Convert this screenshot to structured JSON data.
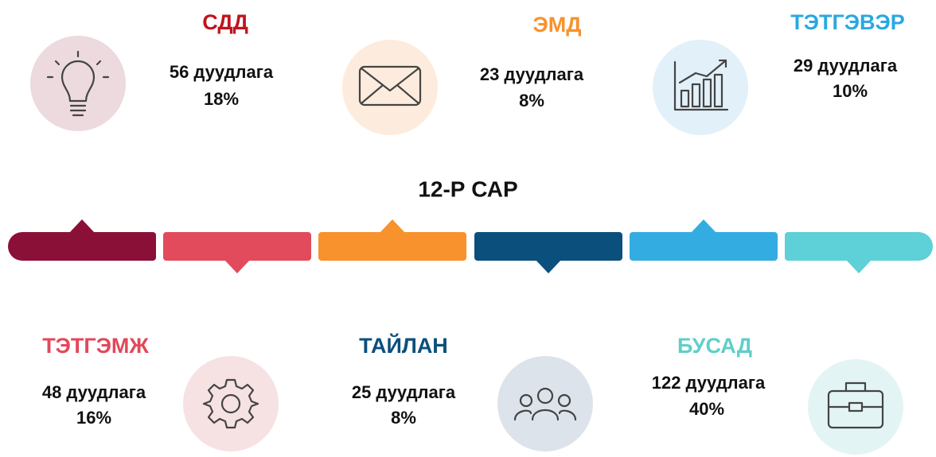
{
  "title": "12-Р САР",
  "items": [
    {
      "label": "СДД",
      "count": "56 дуудлага",
      "percent": "18%",
      "label_color": "#c0141d",
      "bar_color": "#8b1038",
      "circle_color": "#ecdade"
    },
    {
      "label": "ТЭТГЭМЖ",
      "count": "48 дуудлага",
      "percent": "16%",
      "label_color": "#e2485a",
      "bar_color": "#e24b5c",
      "circle_color": "#f6e1e3"
    },
    {
      "label": "ЭМД",
      "count": "23 дуудлага",
      "percent": "8%",
      "label_color": "#f7922d",
      "bar_color": "#f7922d",
      "circle_color": "#fdecdd"
    },
    {
      "label": "ТАЙЛАН",
      "count": "25 дуудлага",
      "percent": "8%",
      "label_color": "#0c4f7c",
      "bar_color": "#0b4f7c",
      "circle_color": "#dde3ea"
    },
    {
      "label": "ТЭТГЭВЭР",
      "count": "29 дуудлага",
      "percent": "10%",
      "label_color": "#29a8e0",
      "bar_color": "#33ace2",
      "circle_color": "#e2f0f9"
    },
    {
      "label": "БУСАД",
      "count": "122 дуудлага",
      "percent": "40%",
      "label_color": "#5fcfc8",
      "bar_color": "#5ed0d8",
      "circle_color": "#e3f4f4"
    }
  ]
}
